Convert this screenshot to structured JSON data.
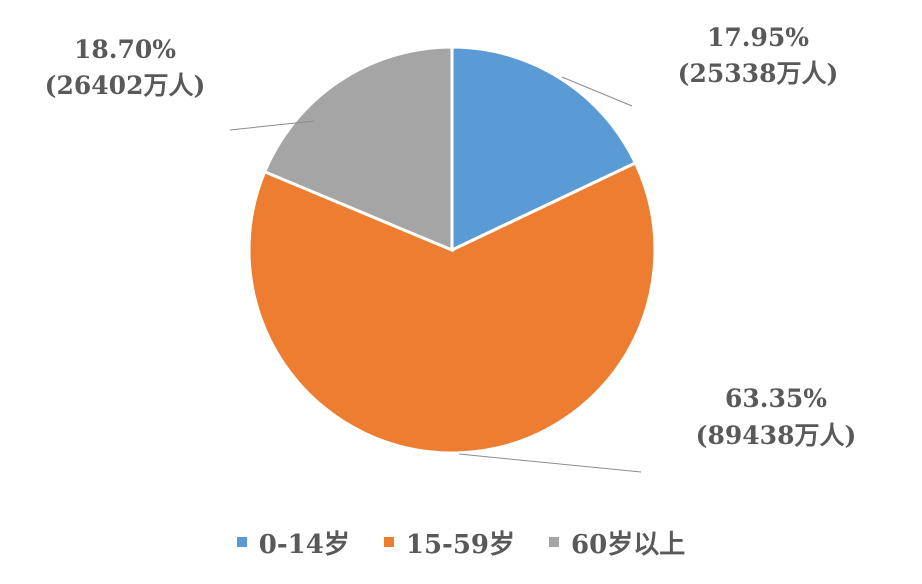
{
  "chart_data": {
    "type": "pie",
    "title": "",
    "slices": [
      {
        "name": "0-14岁",
        "percent": 17.95,
        "pct_label": "17.95%",
        "count_label": "(25338万人)",
        "color": "#5b9bd5"
      },
      {
        "name": "15-59岁",
        "percent": 63.35,
        "pct_label": "63.35%",
        "count_label": "(89438万人)",
        "color": "#ed7d31"
      },
      {
        "name": "60岁以上",
        "percent": 18.7,
        "pct_label": "18.70%",
        "count_label": "(26402万人)",
        "color": "#a5a5a5"
      }
    ],
    "legend": {
      "placement": "bottom",
      "items": [
        "0-14岁",
        "15-59岁",
        "60岁以上"
      ]
    }
  }
}
